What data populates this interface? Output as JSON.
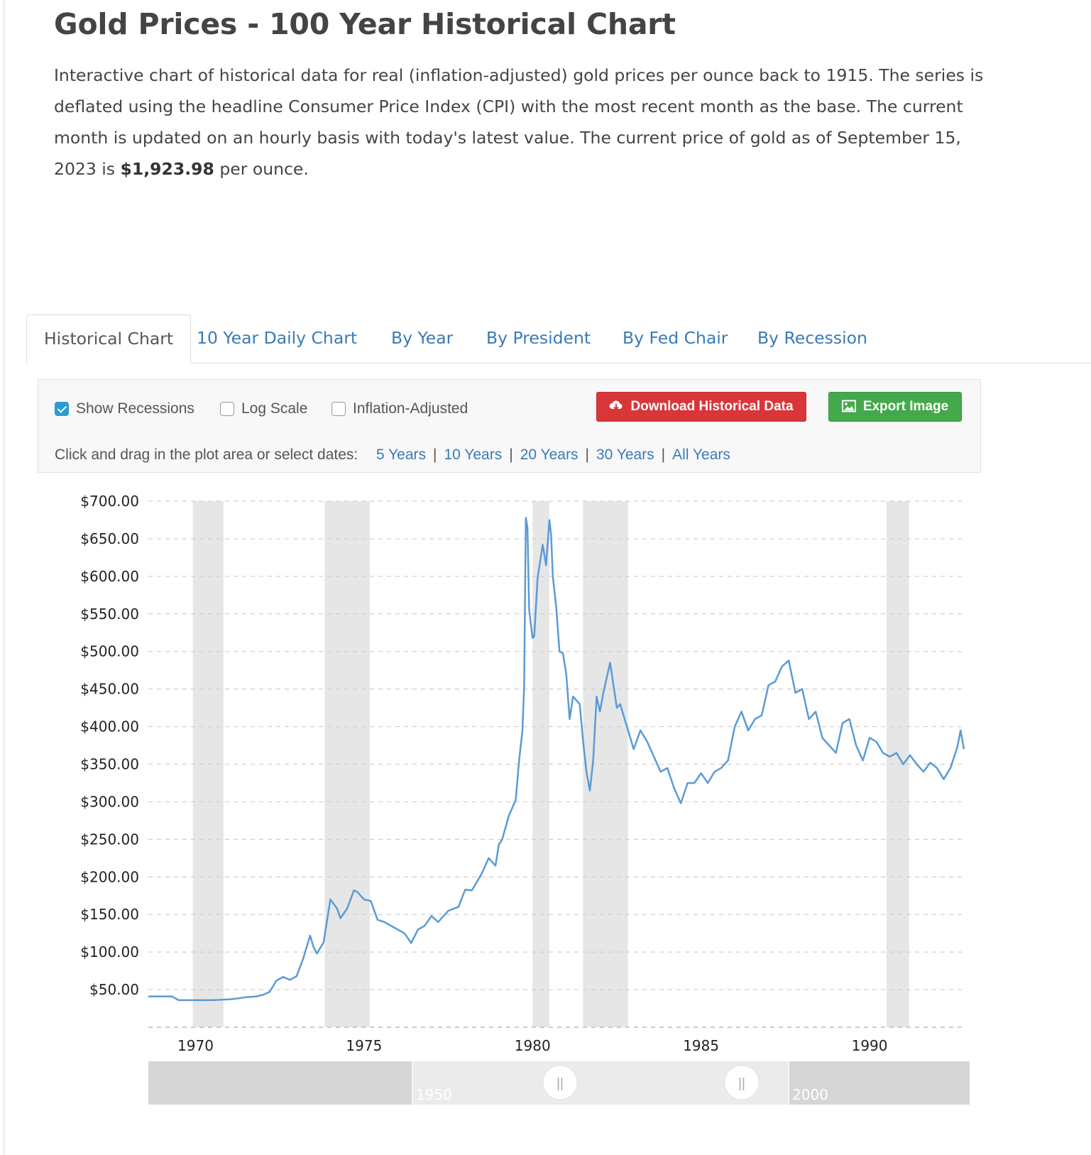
{
  "page": {
    "title": "Gold Prices - 100 Year Historical Chart",
    "intro_text": "Interactive chart of historical data for real (inflation-adjusted) gold prices per ounce back to 1915. The series is deflated using the headline Consumer Price Index (CPI) with the most recent month as the base. The current month is updated on an hourly basis with today's latest value. The current price of gold as of September 15, 2023 is ",
    "current_price": "$1,923.98",
    "intro_suffix": " per ounce."
  },
  "tabs": [
    {
      "label": "Historical Chart",
      "active": true
    },
    {
      "label": "10 Year Daily Chart",
      "active": false
    },
    {
      "label": "By Year",
      "active": false
    },
    {
      "label": "By President",
      "active": false
    },
    {
      "label": "By Fed Chair",
      "active": false
    },
    {
      "label": "By Recession",
      "active": false
    }
  ],
  "controls": {
    "show_recessions": {
      "label": "Show Recessions",
      "checked": true
    },
    "log_scale": {
      "label": "Log Scale",
      "checked": false
    },
    "inflation_adjusted": {
      "label": "Inflation-Adjusted",
      "checked": false
    },
    "download_label": "Download Historical Data",
    "export_label": "Export Image",
    "download_color": "#d9363a",
    "export_color": "#44a94a",
    "date_prompt": "Click and drag in the plot area or select dates:",
    "ranges": [
      "5 Years",
      "10 Years",
      "20 Years",
      "30 Years",
      "All Years"
    ]
  },
  "navigator": {
    "labels": [
      "1950",
      "2000"
    ],
    "handle_glyph": "||"
  },
  "chart_data": {
    "type": "line",
    "title": "",
    "xlabel": "",
    "ylabel": "",
    "line_color": "#5b9bd5",
    "recession_color": "#e6e6e6",
    "xlim": [
      1968.6,
      1992.8
    ],
    "ylim": [
      0,
      700
    ],
    "x_ticks": [
      1970,
      1975,
      1980,
      1985,
      1990
    ],
    "y_ticks": [
      50,
      100,
      150,
      200,
      250,
      300,
      350,
      400,
      450,
      500,
      550,
      600,
      650,
      700
    ],
    "y_tick_labels": [
      "$50.00",
      "$100.00",
      "$150.00",
      "$200.00",
      "$250.00",
      "$300.00",
      "$350.00",
      "$400.00",
      "$450.00",
      "$500.00",
      "$550.00",
      "$600.00",
      "$650.00",
      "$700.00"
    ],
    "grid": true,
    "recessions": [
      [
        1969.92,
        1970.83
      ],
      [
        1973.83,
        1975.17
      ],
      [
        1980.0,
        1980.5
      ],
      [
        1981.5,
        1982.83
      ],
      [
        1990.5,
        1991.17
      ]
    ],
    "series": [
      {
        "x": [
          1968.6,
          1969.0,
          1969.3,
          1969.5,
          1970.0,
          1970.5,
          1971.0,
          1971.2,
          1971.5,
          1971.8,
          1972.0,
          1972.2,
          1972.4,
          1972.6,
          1972.8,
          1973.0,
          1973.2,
          1973.4,
          1973.5,
          1973.6,
          1973.8,
          1974.0,
          1974.2,
          1974.3,
          1974.5,
          1974.7,
          1974.8,
          1975.0,
          1975.2,
          1975.4,
          1975.6,
          1976.0,
          1976.2,
          1976.4,
          1976.6,
          1976.8,
          1977.0,
          1977.2,
          1977.5,
          1977.8,
          1978.0,
          1978.2,
          1978.5,
          1978.7,
          1978.9,
          1979.0,
          1979.1,
          1979.3,
          1979.5,
          1979.6,
          1979.7,
          1979.75,
          1979.8,
          1979.85,
          1979.9,
          1980.0,
          1980.05,
          1980.15,
          1980.3,
          1980.4,
          1980.5,
          1980.55,
          1980.6,
          1980.7,
          1980.8,
          1980.9,
          1981.0,
          1981.1,
          1981.2,
          1981.4,
          1981.5,
          1981.6,
          1981.7,
          1981.8,
          1981.9,
          1982.0,
          1982.1,
          1982.3,
          1982.5,
          1982.6,
          1982.8,
          1982.9,
          1983.0,
          1983.2,
          1983.4,
          1983.6,
          1983.8,
          1984.0,
          1984.2,
          1984.4,
          1984.6,
          1984.8,
          1985.0,
          1985.2,
          1985.4,
          1985.6,
          1985.8,
          1986.0,
          1986.2,
          1986.4,
          1986.6,
          1986.8,
          1987.0,
          1987.2,
          1987.4,
          1987.6,
          1987.8,
          1988.0,
          1988.2,
          1988.4,
          1988.6,
          1988.8,
          1989.0,
          1989.2,
          1989.4,
          1989.6,
          1989.8,
          1990.0,
          1990.2,
          1990.4,
          1990.6,
          1990.8,
          1991.0,
          1991.2,
          1991.4,
          1991.6,
          1991.8,
          1992.0,
          1992.2,
          1992.4,
          1992.6,
          1992.7,
          1992.8
        ],
        "y": [
          41,
          41,
          41,
          36,
          36,
          36,
          37,
          38,
          40,
          41,
          43,
          47,
          62,
          67,
          63,
          68,
          92,
          122,
          107,
          98,
          113,
          170,
          158,
          145,
          158,
          182,
          180,
          170,
          168,
          143,
          140,
          130,
          125,
          112,
          130,
          135,
          148,
          140,
          155,
          160,
          183,
          182,
          205,
          225,
          215,
          243,
          250,
          282,
          302,
          355,
          395,
          453,
          678,
          665,
          555,
          518,
          520,
          598,
          642,
          615,
          675,
          655,
          600,
          560,
          500,
          498,
          470,
          410,
          440,
          430,
          380,
          340,
          315,
          355,
          440,
          420,
          445,
          485,
          425,
          430,
          400,
          385,
          370,
          395,
          380,
          360,
          340,
          345,
          318,
          298,
          325,
          325,
          338,
          325,
          340,
          345,
          355,
          400,
          420,
          395,
          410,
          415,
          455,
          460,
          480,
          488,
          445,
          450,
          410,
          420,
          385,
          375,
          365,
          405,
          410,
          375,
          355,
          385,
          380,
          365,
          360,
          365,
          350,
          362,
          350,
          340,
          352,
          345,
          330,
          345,
          372,
          395,
          370
        ]
      }
    ]
  }
}
